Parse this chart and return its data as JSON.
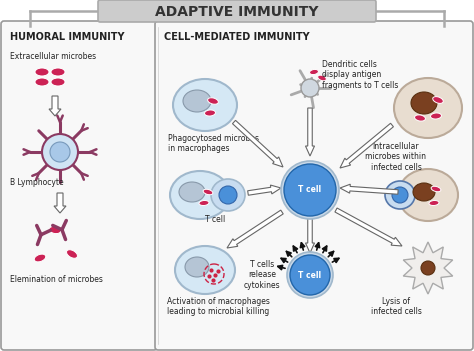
{
  "title": "ADAPTIVE IMMUNITY",
  "left_title": "HUMORAL IMMUNITY",
  "right_title": "CELL-MEDIATED IMMUNITY",
  "bg_color": "#ffffff",
  "microbe_color": "#cc2255",
  "cell_body_color": "#d8eaf6",
  "cell_outline_color": "#a0b8cc",
  "nucleus_gray_color": "#b0bec5",
  "t_cell_color": "#4a90d9",
  "lymphocyte_arm_color": "#8b3a62",
  "arrow_white_color": "#ffffff",
  "arrow_edge_color": "#666666",
  "black_arrow_color": "#111111",
  "text_color": "#222222",
  "antibody_color": "#8b3a62",
  "dendritic_arm_color": "#aaaaaa",
  "infected_outer_color": "#e8ddd0",
  "nucleus_brown_color": "#7a4020",
  "label_fontsize": 5.5,
  "title_fontsize": 10,
  "section_title_fontsize": 7,
  "panel_bg": "#f5f5f5",
  "banner_bg": "#cccccc"
}
